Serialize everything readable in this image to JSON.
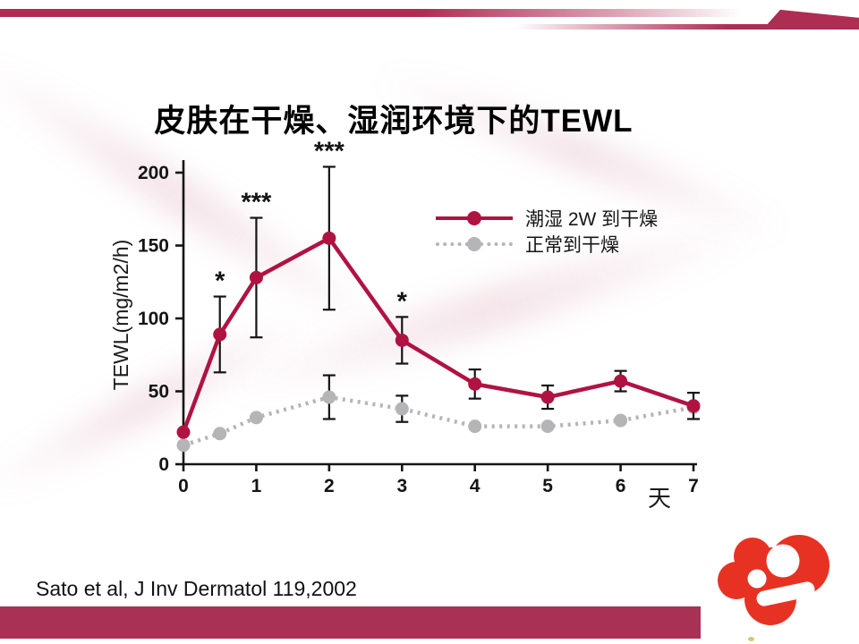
{
  "slide": {
    "title": "皮肤在干燥、湿润环境下的TEWL",
    "citation": "Sato et al, J Inv Dermatol 119,2002"
  },
  "chart_data": {
    "type": "line",
    "title": "",
    "xlabel": "天",
    "ylabel": "TEWL(mg/m2/h)",
    "xlim": [
      0,
      7
    ],
    "ylim": [
      0,
      200
    ],
    "x_ticks": [
      0,
      1,
      2,
      3,
      4,
      5,
      6,
      7
    ],
    "y_ticks": [
      0,
      50,
      100,
      150,
      200
    ],
    "grid": false,
    "legend_position": "upper right",
    "x": [
      0,
      0.5,
      1,
      2,
      3,
      4,
      5,
      6,
      7
    ],
    "series": [
      {
        "name": "潮湿  2W 到干燥",
        "color": "#b01342",
        "style": "solid",
        "marker": "circle",
        "values": [
          22,
          89,
          128,
          155,
          85,
          55,
          46,
          57,
          40
        ],
        "error": [
          0,
          26,
          41,
          49,
          16,
          10,
          8,
          7,
          9
        ],
        "significance": [
          "",
          "*",
          "***",
          "***",
          "*",
          "",
          "",
          "",
          ""
        ]
      },
      {
        "name": "正常到干燥",
        "color": "#b5b4b6",
        "style": "dotted",
        "marker": "circle",
        "values": [
          13,
          21,
          32,
          46,
          38,
          26,
          26,
          30,
          39
        ],
        "error": [
          0,
          0,
          0,
          15,
          9,
          0,
          0,
          0,
          0
        ],
        "significance": [
          "",
          "",
          "",
          "",
          "",
          "",
          "",
          "",
          ""
        ]
      }
    ]
  },
  "colors": {
    "accent_maroon": "#ae2d53",
    "bottom_bar": "#a93156",
    "logo_red": "#e73223",
    "chart_red": "#b01342",
    "chart_gray": "#b5b4b6",
    "error_bar": "#141414"
  }
}
